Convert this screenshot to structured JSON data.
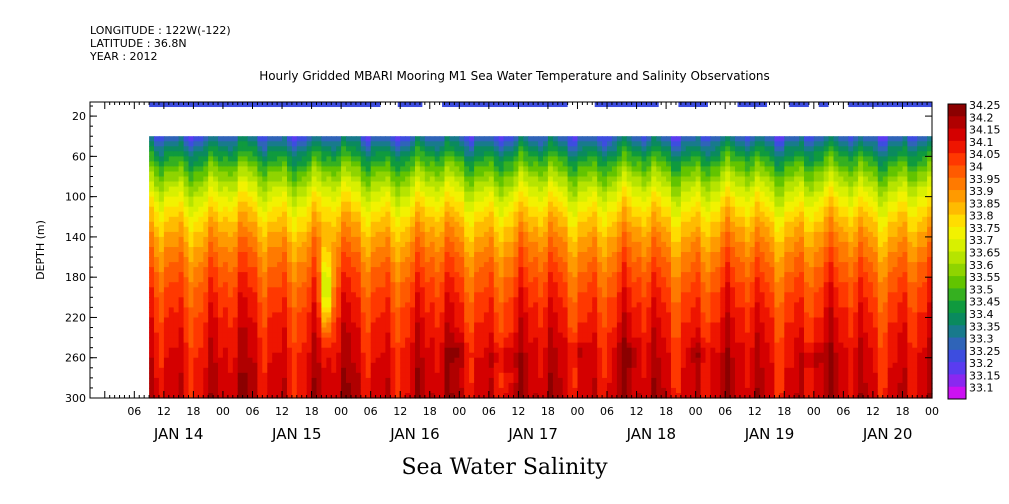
{
  "meta": {
    "longitude": "LONGITUDE : 122W(-122)",
    "latitude": "LATITUDE : 36.8N",
    "year": "YEAR : 2012"
  },
  "chart_data": {
    "type": "heatmap",
    "title": "Hourly Gridded MBARI Mooring M1 Sea Water Temperature and Salinity Observations",
    "xlabel": "Sea Water Salinity",
    "ylabel": "DEPTH (m)",
    "ylim": [
      0,
      300
    ],
    "y_ticks": [
      20,
      60,
      100,
      140,
      180,
      220,
      260,
      300
    ],
    "x_hour_ticks": [
      "06",
      "12",
      "18",
      "00",
      "06",
      "12",
      "18",
      "00",
      "06",
      "12",
      "18",
      "00",
      "06",
      "12",
      "18",
      "00",
      "06",
      "12",
      "18",
      "00",
      "06",
      "12",
      "18",
      "00",
      "06",
      "12",
      "18",
      "00"
    ],
    "x_day_labels": [
      "JAN 14",
      "JAN 15",
      "JAN 16",
      "JAN 17",
      "JAN 18",
      "JAN 19",
      "JAN 20"
    ],
    "x_range_hours": [
      0,
      162
    ],
    "colorbar": {
      "levels": [
        "34.25",
        "34.2",
        "34.15",
        "34.1",
        "34.05",
        "34",
        "33.95",
        "33.9",
        "33.85",
        "33.8",
        "33.75",
        "33.7",
        "33.65",
        "33.6",
        "33.55",
        "33.5",
        "33.45",
        "33.4",
        "33.35",
        "33.3",
        "33.25",
        "33.2",
        "33.15",
        "33.1"
      ],
      "colors": [
        "#8b0000",
        "#b00000",
        "#d40000",
        "#ee1500",
        "#ff3800",
        "#ff5a00",
        "#ff7a00",
        "#ff9a00",
        "#ffbb00",
        "#ffdd00",
        "#f2f200",
        "#d8f000",
        "#b6e400",
        "#8fd400",
        "#62c400",
        "#35b020",
        "#0f9a3e",
        "#0a8a5e",
        "#187a8c",
        "#2f64b8",
        "#3d4ddf",
        "#5a3cf0",
        "#8a28f0",
        "#cc11f2"
      ]
    },
    "surface_gaps_hours": [
      [
        50,
        53.5
      ],
      [
        58.5,
        62.5
      ],
      [
        88,
        93.5
      ],
      [
        106.5,
        110.5
      ],
      [
        116.5,
        122.5
      ],
      [
        128.5,
        133
      ],
      [
        137,
        139
      ],
      [
        141,
        145
      ]
    ],
    "surface_band_value": 33.25,
    "shallow_no_data_depth": 40,
    "notes": "Salinity increases with depth: ~33.3 near 40 m, ~33.8 near 140 m, ~34.2+ below 250 m."
  }
}
